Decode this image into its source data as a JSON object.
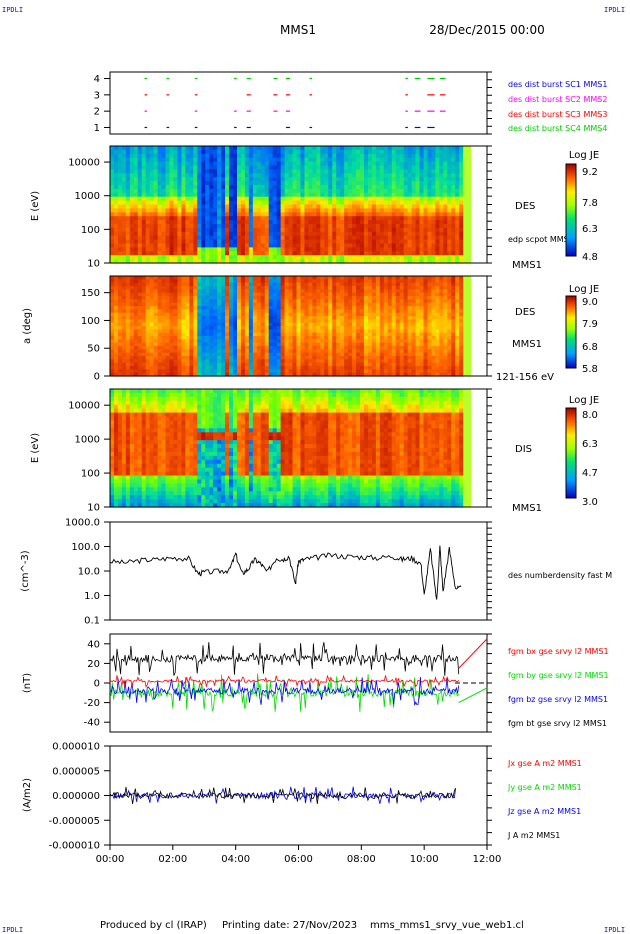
{
  "corners": {
    "tl": "IPDLI",
    "tr": "IPDLI",
    "bl": "IPDLI",
    "br": "IPDLI"
  },
  "header": {
    "spacecraft": "MMS1",
    "date": "28/Dec/2015 00:00"
  },
  "footer": {
    "produced": "Produced by cl (IRAP)",
    "printing": "Printing date: 27/Nov/2023",
    "file": "mms_mms1_srvy_vue_web1.cl"
  },
  "colors": {
    "red": "#ff0000",
    "green": "#00dd00",
    "blue": "#0000ff",
    "magenta": "#ff00ff",
    "black": "#000000",
    "navy": "#1a1a9c"
  },
  "chart_data": [
    {
      "type": "scatter",
      "panel": "burst availability",
      "x_range_hours": [
        0,
        12
      ],
      "ylim": [
        0.6,
        4.4
      ],
      "yticks": [
        "1",
        "2",
        "3",
        "4"
      ],
      "legend": [
        {
          "label": "des dist burst SC1 MMS1",
          "color": "#0000ff"
        },
        {
          "label": "des dist burst SC2 MMS2",
          "color": "#ff00ff"
        },
        {
          "label": "des dist burst SC3 MMS3",
          "color": "#ff0000"
        },
        {
          "label": "des dist burst SC4 MMS4",
          "color": "#00cc00"
        }
      ],
      "segments_hours": [
        [
          1.1,
          1.15
        ],
        [
          1.8,
          1.85
        ],
        [
          2.7,
          2.75
        ],
        [
          3.95,
          4.0
        ],
        [
          4.35,
          4.45
        ],
        [
          5.2,
          5.3
        ],
        [
          5.6,
          5.7
        ],
        [
          6.35,
          6.4
        ],
        [
          9.4,
          9.45
        ],
        [
          9.7,
          9.85
        ],
        [
          10.1,
          10.3
        ],
        [
          10.5,
          10.65
        ]
      ]
    },
    {
      "type": "heatmap",
      "panel": "DES energy spectrogram",
      "ylabel": "E (eV)",
      "ylim": [
        10,
        30000
      ],
      "log_y": true,
      "yticks": [
        "10",
        "100",
        "1000",
        "10000"
      ],
      "labels": [
        "DES",
        "edp scpot MMS1",
        "MMS1"
      ],
      "colorbar": {
        "title": "Log JE",
        "ticks": [
          "9.2",
          "7.8",
          "6.3",
          "4.8"
        ],
        "range": [
          4.8,
          9.2
        ]
      }
    },
    {
      "type": "heatmap",
      "panel": "DES pitch angle",
      "ylabel": "a (deg)",
      "ylim": [
        0,
        180
      ],
      "yticks": [
        "0",
        "50",
        "100",
        "150"
      ],
      "labels": [
        "DES",
        "MMS1",
        "121-156 eV"
      ],
      "colorbar": {
        "title": "Log JE",
        "ticks": [
          "9.0",
          "7.9",
          "6.8",
          "5.8"
        ],
        "range": [
          5.8,
          9.0
        ]
      }
    },
    {
      "type": "heatmap",
      "panel": "DIS energy spectrogram",
      "ylabel": "E (eV)",
      "ylim": [
        10,
        30000
      ],
      "log_y": true,
      "yticks": [
        "10",
        "100",
        "1000",
        "10000"
      ],
      "labels": [
        "DIS",
        "MMS1"
      ],
      "colorbar": {
        "title": "Log JE",
        "ticks": [
          "8.0",
          "6.3",
          "4.7",
          "3.0"
        ],
        "range": [
          3.0,
          8.0
        ]
      }
    },
    {
      "type": "line",
      "panel": "density",
      "ylabel": "(cm^-3)",
      "ylim": [
        0.1,
        1000
      ],
      "log_y": true,
      "yticks": [
        "0.1",
        "1.0",
        "10.0",
        "100.0",
        "1000.0"
      ],
      "series": [
        {
          "name": "des numberdensity fast M",
          "color": "#000000",
          "x": [
            0,
            0.5,
            1.0,
            1.5,
            2.0,
            2.5,
            2.8,
            3.0,
            3.5,
            3.8,
            4.0,
            4.2,
            4.4,
            4.6,
            4.8,
            5.0,
            5.3,
            5.5,
            5.7,
            5.9,
            6.0,
            6.2,
            6.5,
            7.0,
            7.5,
            8.0,
            8.5,
            9.0,
            9.3,
            9.6,
            9.9,
            10.0,
            10.2,
            10.4,
            10.5,
            10.6,
            10.8,
            11.0,
            11.2
          ],
          "y": [
            25,
            22,
            28,
            30,
            35,
            33,
            8,
            9,
            10,
            11,
            50,
            8,
            12,
            30,
            20,
            9,
            35,
            30,
            40,
            3,
            25,
            30,
            35,
            45,
            40,
            38,
            35,
            40,
            30,
            35,
            20,
            1.0,
            80,
            0.6,
            100,
            1.5,
            80,
            2,
            2
          ]
        }
      ]
    },
    {
      "type": "line",
      "panel": "magnetic field",
      "ylabel": "(nT)",
      "ylim": [
        -50,
        50
      ],
      "yticks": [
        "-40",
        "-20",
        "0",
        "20",
        "40"
      ],
      "series": [
        {
          "name": "fgm bx gse srvy l2 MMS1",
          "color": "#ff0000"
        },
        {
          "name": "fgm by gse srvy l2 MMS1",
          "color": "#00dd00"
        },
        {
          "name": "fgm bz gse srvy l2 MMS1",
          "color": "#0000ff"
        },
        {
          "name": "fgm bt gse srvy l2 MMS1",
          "color": "#000000"
        }
      ]
    },
    {
      "type": "line",
      "panel": "current density",
      "ylabel": "(A/m2)",
      "ylim": [
        -0.0001,
        0.0001
      ],
      "yticks": [
        "-0.000010",
        "-0.000005",
        "0.000000",
        "0.000005",
        "0.000010"
      ],
      "xticks": [
        "00:00",
        "02:00",
        "04:00",
        "06:00",
        "08:00",
        "10:00",
        "12:00"
      ],
      "series": [
        {
          "name": "Jx gse A m2 MMS1",
          "color": "#ff0000"
        },
        {
          "name": "Jy gse A m2 MMS1",
          "color": "#00dd00"
        },
        {
          "name": "Jz gse A m2 MMS1",
          "color": "#0000ff"
        },
        {
          "name": "J A m2 MMS1",
          "color": "#000000"
        }
      ]
    }
  ]
}
